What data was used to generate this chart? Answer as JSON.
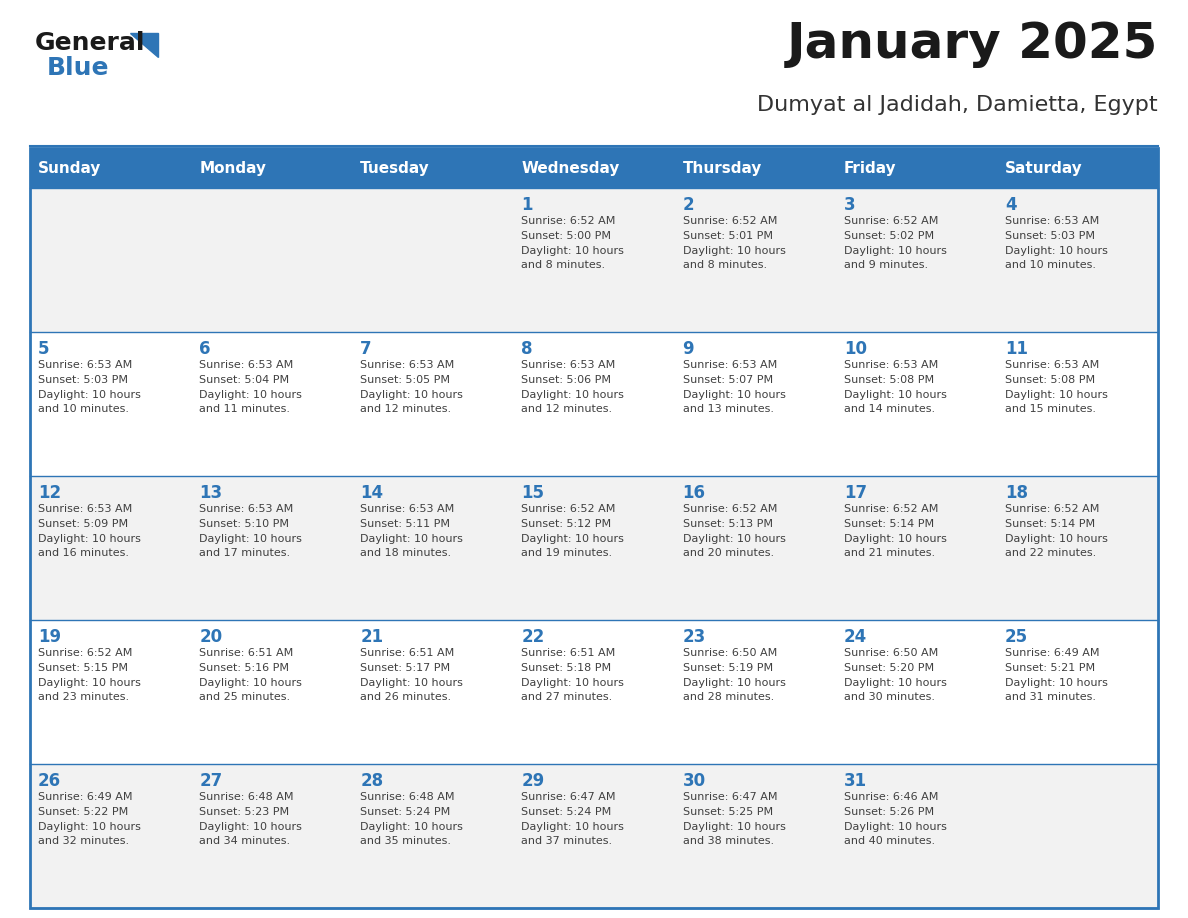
{
  "title": "January 2025",
  "subtitle": "Dumyat al Jadidah, Damietta, Egypt",
  "days_of_week": [
    "Sunday",
    "Monday",
    "Tuesday",
    "Wednesday",
    "Thursday",
    "Friday",
    "Saturday"
  ],
  "header_bg": "#2E75B6",
  "header_text_color": "#FFFFFF",
  "cell_bg_light": "#F2F2F2",
  "cell_bg_white": "#FFFFFF",
  "cell_text_color": "#404040",
  "day_num_color": "#2E75B6",
  "title_color": "#1A1A1A",
  "subtitle_color": "#333333",
  "logo_general_color": "#1A1A1A",
  "logo_blue_color": "#2E75B6",
  "grid_line_color": "#2E75B6",
  "weeks": [
    [
      {
        "day": "",
        "info": ""
      },
      {
        "day": "",
        "info": ""
      },
      {
        "day": "",
        "info": ""
      },
      {
        "day": "1",
        "info": "Sunrise: 6:52 AM\nSunset: 5:00 PM\nDaylight: 10 hours\nand 8 minutes."
      },
      {
        "day": "2",
        "info": "Sunrise: 6:52 AM\nSunset: 5:01 PM\nDaylight: 10 hours\nand 8 minutes."
      },
      {
        "day": "3",
        "info": "Sunrise: 6:52 AM\nSunset: 5:02 PM\nDaylight: 10 hours\nand 9 minutes."
      },
      {
        "day": "4",
        "info": "Sunrise: 6:53 AM\nSunset: 5:03 PM\nDaylight: 10 hours\nand 10 minutes."
      }
    ],
    [
      {
        "day": "5",
        "info": "Sunrise: 6:53 AM\nSunset: 5:03 PM\nDaylight: 10 hours\nand 10 minutes."
      },
      {
        "day": "6",
        "info": "Sunrise: 6:53 AM\nSunset: 5:04 PM\nDaylight: 10 hours\nand 11 minutes."
      },
      {
        "day": "7",
        "info": "Sunrise: 6:53 AM\nSunset: 5:05 PM\nDaylight: 10 hours\nand 12 minutes."
      },
      {
        "day": "8",
        "info": "Sunrise: 6:53 AM\nSunset: 5:06 PM\nDaylight: 10 hours\nand 12 minutes."
      },
      {
        "day": "9",
        "info": "Sunrise: 6:53 AM\nSunset: 5:07 PM\nDaylight: 10 hours\nand 13 minutes."
      },
      {
        "day": "10",
        "info": "Sunrise: 6:53 AM\nSunset: 5:08 PM\nDaylight: 10 hours\nand 14 minutes."
      },
      {
        "day": "11",
        "info": "Sunrise: 6:53 AM\nSunset: 5:08 PM\nDaylight: 10 hours\nand 15 minutes."
      }
    ],
    [
      {
        "day": "12",
        "info": "Sunrise: 6:53 AM\nSunset: 5:09 PM\nDaylight: 10 hours\nand 16 minutes."
      },
      {
        "day": "13",
        "info": "Sunrise: 6:53 AM\nSunset: 5:10 PM\nDaylight: 10 hours\nand 17 minutes."
      },
      {
        "day": "14",
        "info": "Sunrise: 6:53 AM\nSunset: 5:11 PM\nDaylight: 10 hours\nand 18 minutes."
      },
      {
        "day": "15",
        "info": "Sunrise: 6:52 AM\nSunset: 5:12 PM\nDaylight: 10 hours\nand 19 minutes."
      },
      {
        "day": "16",
        "info": "Sunrise: 6:52 AM\nSunset: 5:13 PM\nDaylight: 10 hours\nand 20 minutes."
      },
      {
        "day": "17",
        "info": "Sunrise: 6:52 AM\nSunset: 5:14 PM\nDaylight: 10 hours\nand 21 minutes."
      },
      {
        "day": "18",
        "info": "Sunrise: 6:52 AM\nSunset: 5:14 PM\nDaylight: 10 hours\nand 22 minutes."
      }
    ],
    [
      {
        "day": "19",
        "info": "Sunrise: 6:52 AM\nSunset: 5:15 PM\nDaylight: 10 hours\nand 23 minutes."
      },
      {
        "day": "20",
        "info": "Sunrise: 6:51 AM\nSunset: 5:16 PM\nDaylight: 10 hours\nand 25 minutes."
      },
      {
        "day": "21",
        "info": "Sunrise: 6:51 AM\nSunset: 5:17 PM\nDaylight: 10 hours\nand 26 minutes."
      },
      {
        "day": "22",
        "info": "Sunrise: 6:51 AM\nSunset: 5:18 PM\nDaylight: 10 hours\nand 27 minutes."
      },
      {
        "day": "23",
        "info": "Sunrise: 6:50 AM\nSunset: 5:19 PM\nDaylight: 10 hours\nand 28 minutes."
      },
      {
        "day": "24",
        "info": "Sunrise: 6:50 AM\nSunset: 5:20 PM\nDaylight: 10 hours\nand 30 minutes."
      },
      {
        "day": "25",
        "info": "Sunrise: 6:49 AM\nSunset: 5:21 PM\nDaylight: 10 hours\nand 31 minutes."
      }
    ],
    [
      {
        "day": "26",
        "info": "Sunrise: 6:49 AM\nSunset: 5:22 PM\nDaylight: 10 hours\nand 32 minutes."
      },
      {
        "day": "27",
        "info": "Sunrise: 6:48 AM\nSunset: 5:23 PM\nDaylight: 10 hours\nand 34 minutes."
      },
      {
        "day": "28",
        "info": "Sunrise: 6:48 AM\nSunset: 5:24 PM\nDaylight: 10 hours\nand 35 minutes."
      },
      {
        "day": "29",
        "info": "Sunrise: 6:47 AM\nSunset: 5:24 PM\nDaylight: 10 hours\nand 37 minutes."
      },
      {
        "day": "30",
        "info": "Sunrise: 6:47 AM\nSunset: 5:25 PM\nDaylight: 10 hours\nand 38 minutes."
      },
      {
        "day": "31",
        "info": "Sunrise: 6:46 AM\nSunset: 5:26 PM\nDaylight: 10 hours\nand 40 minutes."
      },
      {
        "day": "",
        "info": ""
      }
    ]
  ]
}
